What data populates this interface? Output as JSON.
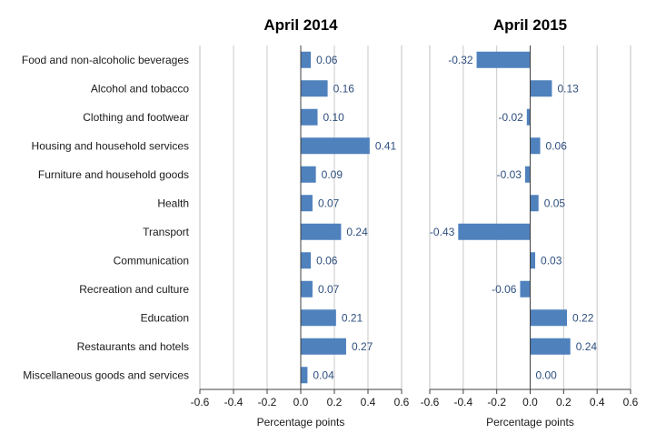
{
  "chart_data": {
    "type": "bar",
    "orientation": "horizontal",
    "categories": [
      "Food and non-alcoholic beverages",
      "Alcohol and tobacco",
      "Clothing and footwear",
      "Housing and household services",
      "Furniture and household goods",
      "Health",
      "Transport",
      "Communication",
      "Recreation and culture",
      "Education",
      "Restaurants and hotels",
      "Miscellaneous goods and services"
    ],
    "panels": [
      {
        "title": "April 2014",
        "xlabel": "Percentage points",
        "values": [
          0.06,
          0.16,
          0.1,
          0.41,
          0.09,
          0.07,
          0.24,
          0.06,
          0.07,
          0.21,
          0.27,
          0.04
        ],
        "labels": [
          "0.06",
          "0.16",
          "0.10",
          "0.41",
          "0.09",
          "0.07",
          "0.24",
          "0.06",
          "0.07",
          "0.21",
          "0.27",
          "0.04"
        ]
      },
      {
        "title": "April 2015",
        "xlabel": "Percentage points",
        "values": [
          -0.32,
          0.13,
          -0.02,
          0.06,
          -0.03,
          0.05,
          -0.43,
          0.03,
          -0.06,
          0.22,
          0.24,
          0.0
        ],
        "labels": [
          "-0.32",
          "0.13",
          "-0.02",
          "0.06",
          "-0.03",
          "0.05",
          "-0.43",
          "0.03",
          "-0.06",
          "0.22",
          "0.24",
          "0.00"
        ]
      }
    ],
    "xlim": [
      -0.6,
      0.6
    ],
    "xticks": [
      -0.6,
      -0.4,
      -0.2,
      0.0,
      0.2,
      0.4,
      0.6
    ],
    "xtick_labels": [
      "-0.6",
      "-0.4",
      "-0.2",
      "0.0",
      "0.2",
      "0.4",
      "0.6"
    ],
    "grid": "vertical",
    "bar_color": "#4f81bd",
    "label_color": "#2f4f7f",
    "grid_color": "#c8c8c8"
  }
}
